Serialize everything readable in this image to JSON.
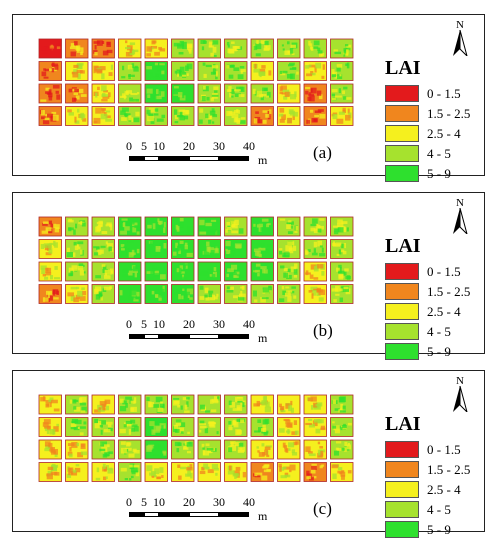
{
  "legend": {
    "title": "LAI",
    "classes": [
      {
        "label": "0 - 1.5",
        "color": "#e31a1c"
      },
      {
        "label": "1.5 - 2.5",
        "color": "#f0861e"
      },
      {
        "label": "2.5 - 4",
        "color": "#f5f01e"
      },
      {
        "label": "4 - 5",
        "color": "#a6e22e"
      },
      {
        "label": "5 - 9",
        "color": "#2ee02e"
      }
    ]
  },
  "north_label": "N",
  "scale_bar": {
    "ticks": [
      "0",
      "5",
      "10",
      "20",
      "30",
      "40"
    ],
    "tick_values": [
      0,
      5,
      10,
      20,
      30,
      40
    ],
    "unit": "m"
  },
  "panels": [
    {
      "label": "(a)",
      "plot_lai_class": [
        [
          0,
          1,
          1,
          2,
          2,
          3,
          3,
          3,
          3,
          3,
          3,
          3
        ],
        [
          1,
          2,
          2,
          3,
          4,
          3,
          3,
          3,
          2,
          3,
          2,
          3
        ],
        [
          1,
          1,
          2,
          3,
          4,
          4,
          3,
          3,
          3,
          2,
          1,
          3
        ],
        [
          1,
          2,
          2,
          3,
          3,
          3,
          3,
          3,
          1,
          2,
          1,
          2
        ]
      ]
    },
    {
      "label": "(b)",
      "plot_lai_class": [
        [
          1,
          3,
          3,
          4,
          4,
          4,
          4,
          3,
          4,
          3,
          3,
          3
        ],
        [
          2,
          3,
          3,
          4,
          4,
          4,
          4,
          4,
          4,
          3,
          3,
          3
        ],
        [
          2,
          3,
          3,
          4,
          4,
          4,
          4,
          4,
          4,
          3,
          2,
          3
        ],
        [
          1,
          2,
          3,
          4,
          4,
          4,
          3,
          3,
          3,
          3,
          2,
          3
        ]
      ]
    },
    {
      "label": "(c)",
      "plot_lai_class": [
        [
          2,
          3,
          2,
          3,
          3,
          3,
          3,
          3,
          2,
          2,
          2,
          3
        ],
        [
          2,
          3,
          3,
          3,
          4,
          3,
          3,
          3,
          3,
          2,
          2,
          3
        ],
        [
          2,
          2,
          3,
          3,
          4,
          3,
          3,
          3,
          2,
          2,
          2,
          3
        ],
        [
          2,
          2,
          2,
          3,
          2,
          2,
          2,
          2,
          1,
          2,
          1,
          2
        ]
      ]
    }
  ]
}
